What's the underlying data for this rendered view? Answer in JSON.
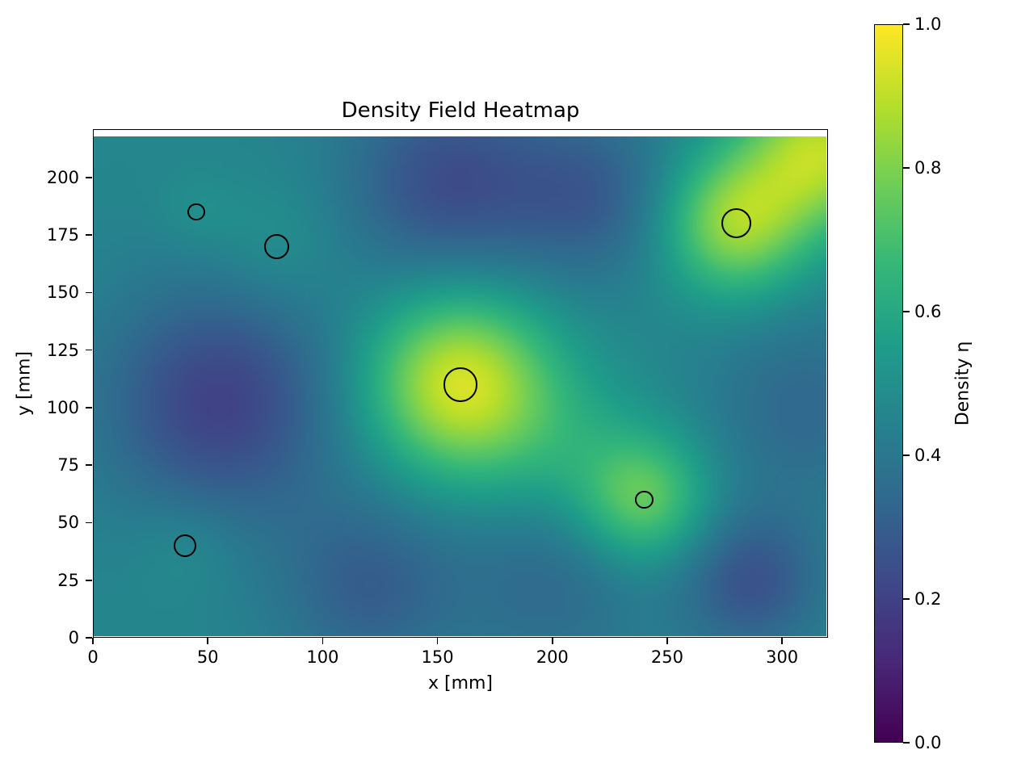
{
  "chart_data": {
    "type": "heatmap",
    "title": "Density Field Heatmap",
    "xlabel": "x [mm]",
    "ylabel": "y [mm]",
    "colorbar_label": "Density η",
    "xlim": [
      0,
      320
    ],
    "ylim": [
      0,
      221
    ],
    "heatmap_extent": {
      "x": [
        0,
        320
      ],
      "y": [
        0,
        218
      ]
    },
    "xticks": [
      0,
      50,
      100,
      150,
      200,
      250,
      300
    ],
    "yticks": [
      0,
      25,
      50,
      75,
      100,
      125,
      150,
      175,
      200
    ],
    "colorbar_ticks": [
      0.0,
      0.2,
      0.4,
      0.6,
      0.8,
      1.0
    ],
    "colorbar_range": [
      0.0,
      1.0
    ],
    "colormap": "viridis",
    "colormap_stops": [
      "#440154",
      "#482878",
      "#3e4989",
      "#31688e",
      "#26828e",
      "#1f9e89",
      "#35b779",
      "#6ece58",
      "#b5de2b",
      "#fde725"
    ],
    "field": {
      "base": 0.46,
      "blobs": [
        {
          "x": 160,
          "y": 110,
          "amp": 0.48,
          "sigma": 28
        },
        {
          "x": 205,
          "y": 82,
          "amp": 0.1,
          "sigma": 26
        },
        {
          "x": 240,
          "y": 60,
          "amp": 0.3,
          "sigma": 20
        },
        {
          "x": 280,
          "y": 180,
          "amp": 0.38,
          "sigma": 22
        },
        {
          "x": 318,
          "y": 212,
          "amp": 0.42,
          "sigma": 24
        },
        {
          "x": 80,
          "y": 170,
          "amp": 0.06,
          "sigma": 20
        },
        {
          "x": 40,
          "y": 40,
          "amp": 0.05,
          "sigma": 16
        },
        {
          "x": 45,
          "y": 185,
          "amp": 0.04,
          "sigma": 13
        },
        {
          "x": 55,
          "y": 102,
          "amp": -0.26,
          "sigma": 36
        },
        {
          "x": 155,
          "y": 198,
          "amp": -0.22,
          "sigma": 32
        },
        {
          "x": 218,
          "y": 192,
          "amp": -0.16,
          "sigma": 26
        },
        {
          "x": 120,
          "y": 22,
          "amp": -0.16,
          "sigma": 28
        },
        {
          "x": 200,
          "y": 25,
          "amp": -0.12,
          "sigma": 30
        },
        {
          "x": 287,
          "y": 24,
          "amp": -0.2,
          "sigma": 22
        },
        {
          "x": 310,
          "y": 100,
          "amp": -0.12,
          "sigma": 30
        }
      ]
    },
    "markers": [
      {
        "x": 45,
        "y": 185,
        "r": 3.8
      },
      {
        "x": 80,
        "y": 170,
        "r": 5.5
      },
      {
        "x": 160,
        "y": 110,
        "r": 7.5
      },
      {
        "x": 240,
        "y": 60,
        "r": 4.0
      },
      {
        "x": 280,
        "y": 180,
        "r": 6.5
      },
      {
        "x": 40,
        "y": 40,
        "r": 5.0
      }
    ]
  }
}
